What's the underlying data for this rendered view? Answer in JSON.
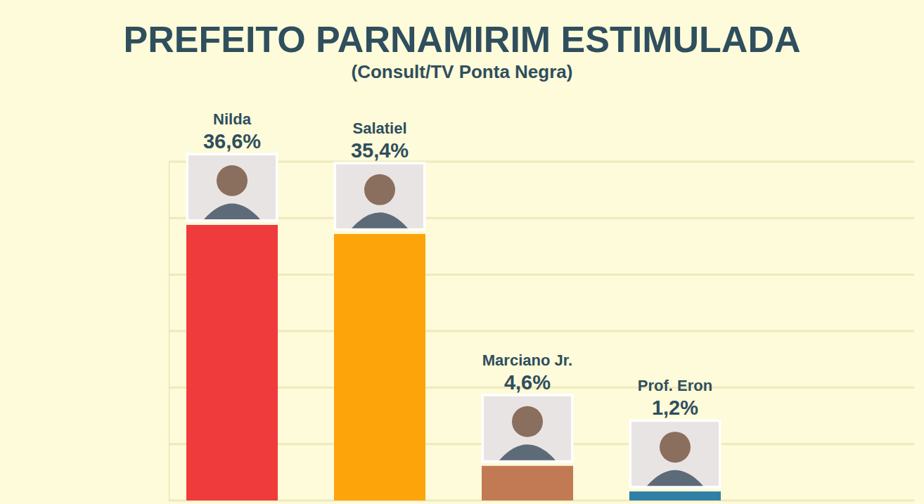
{
  "chart_data": {
    "type": "bar",
    "title": "PREFEITO PARNAMIRIM ESTIMULADA",
    "subtitle": "(Consult/TV Ponta Negra)",
    "categories": [
      "Nilda",
      "Salatiel",
      "Marciano Jr.",
      "Prof. Eron"
    ],
    "values": [
      36.6,
      35.4,
      4.6,
      1.2
    ],
    "value_labels": [
      "36,6%",
      "35,4%",
      "4,6%",
      "1,2%"
    ],
    "colors": [
      "#ef3b3b",
      "#fca40a",
      "#c27a55",
      "#2f7fa6"
    ],
    "ylim": [
      0,
      45
    ],
    "yticks": [
      0,
      7.5,
      15,
      22.5,
      30,
      37.5,
      45
    ],
    "grid": true,
    "data_labels": true,
    "tick_labels": false
  }
}
